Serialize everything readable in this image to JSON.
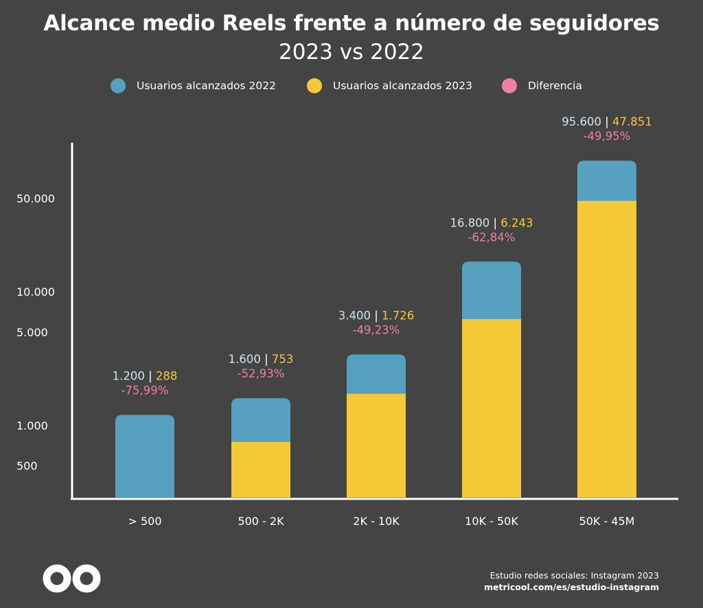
{
  "header": {
    "title": "Alcance medio Reels frente a número de seguidores",
    "subtitle": "2023 vs 2022"
  },
  "colors": {
    "background": "#444444",
    "series_2022": "#56a0c0",
    "series_2023": "#f5c935",
    "difference": "#f07fa0",
    "value_2022_label": "#cfe3ee",
    "axis": "#ffffff"
  },
  "legend": [
    {
      "label": "Usuarios alcanzados 2022",
      "color": "#56a0c0"
    },
    {
      "label": "Usuarios alcanzados 2023",
      "color": "#f5c935"
    },
    {
      "label": "Diferencia",
      "color": "#f07fa0"
    }
  ],
  "chart_data": {
    "type": "bar",
    "scale": "log",
    "categories": [
      "> 500",
      "500 - 2K",
      "2K - 10K",
      "10K - 50K",
      "50K - 45M"
    ],
    "series": [
      {
        "name": "Usuarios alcanzados 2022",
        "values": [
          1200,
          1600,
          3400,
          16800,
          95600
        ],
        "labels": [
          "1.200",
          "1.600",
          "3.400",
          "16.800",
          "95.600"
        ]
      },
      {
        "name": "Usuarios alcanzados 2023",
        "values": [
          288,
          753,
          1726,
          6243,
          47851
        ],
        "labels": [
          "288",
          "753",
          "1.726",
          "6.243",
          "47.851"
        ]
      }
    ],
    "difference": {
      "name": "Diferencia",
      "values": [
        -75.99,
        -52.93,
        -49.23,
        -62.84,
        -49.95
      ],
      "labels": [
        "-75,99%",
        "-52,93%",
        "-49,23%",
        "-62,84%",
        "-49,95%"
      ]
    },
    "separator": "|",
    "y_ticks": [
      {
        "value": 500,
        "label": "500"
      },
      {
        "value": 1000,
        "label": "1.000"
      },
      {
        "value": 5000,
        "label": "5.000"
      },
      {
        "value": 10000,
        "label": "10.000"
      },
      {
        "value": 50000,
        "label": "50.000"
      }
    ],
    "grid": false,
    "legend_position": "top"
  },
  "footer": {
    "line1": "Estudio redes sociales: Instagram 2023",
    "line2": "metricool.com/es/estudio-instagram"
  },
  "logo": {
    "icon": "metricool-infinity-icon"
  }
}
